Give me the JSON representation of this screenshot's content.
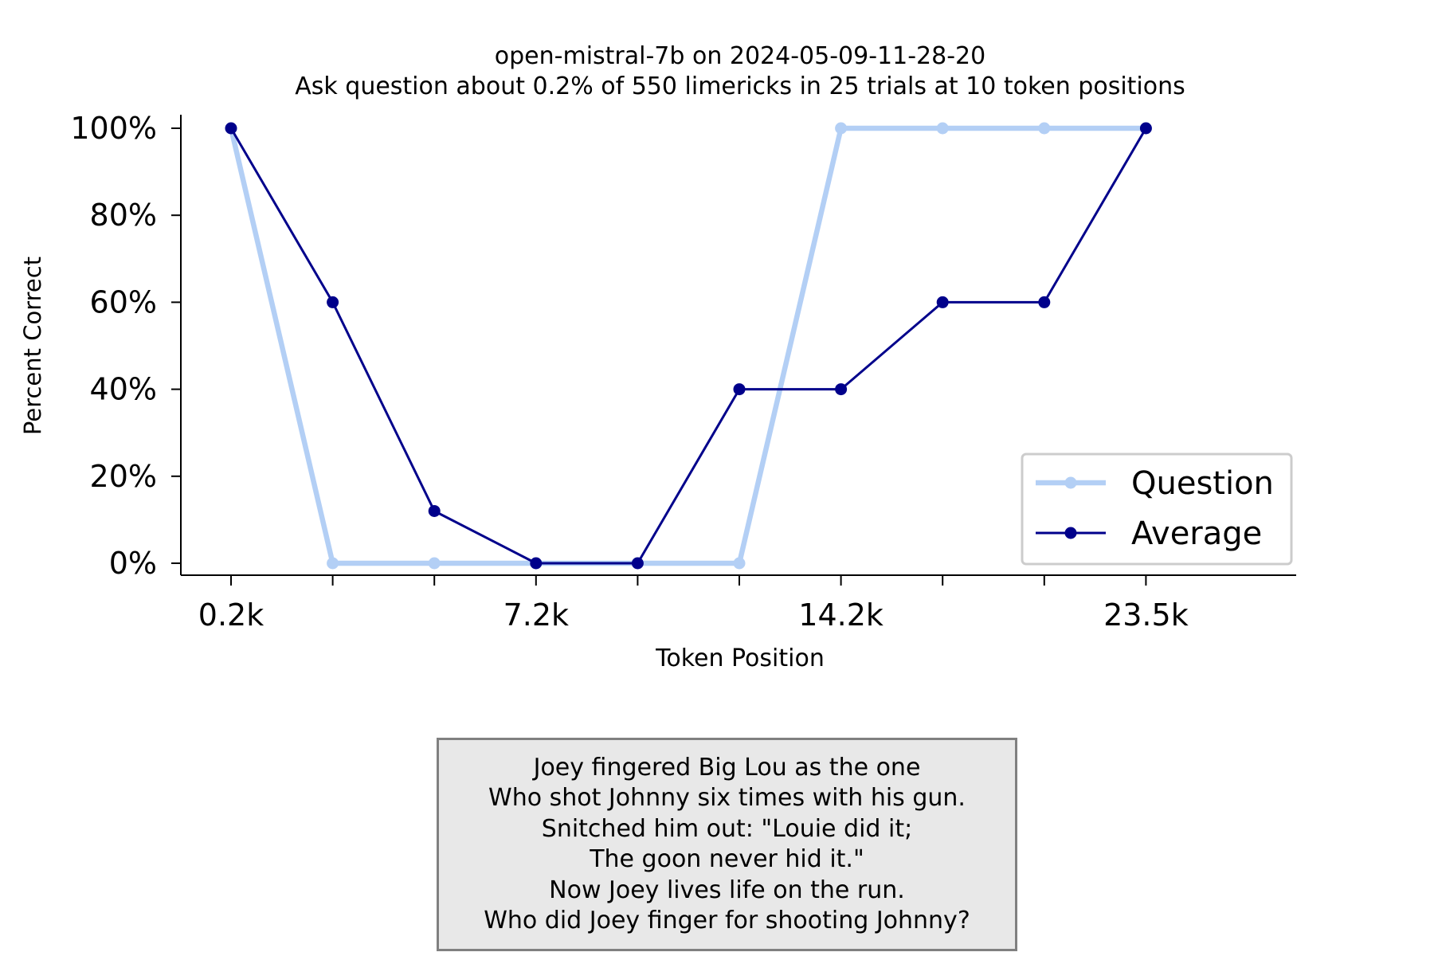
{
  "chart_data": {
    "type": "line",
    "title": "open-mistral-7b on 2024-05-09-11-28-20",
    "subtitle": "Ask question about 0.2% of 550 limericks in 25 trials at 10 token positions",
    "xlabel": "Token Position",
    "ylabel": "Percent Correct",
    "x": [
      0.2,
      2.6,
      4.9,
      7.2,
      9.6,
      11.9,
      14.2,
      16.6,
      18.9,
      23.5
    ],
    "x_ticks_labeled": [
      0,
      3,
      6,
      9
    ],
    "x_tick_labels": [
      "0.2k",
      "7.2k",
      "14.2k",
      "23.5k"
    ],
    "y_ticks": [
      0,
      20,
      40,
      60,
      80,
      100
    ],
    "y_tick_labels": [
      "0%",
      "20%",
      "40%",
      "60%",
      "80%",
      "100%"
    ],
    "ylim": [
      0,
      100
    ],
    "grid": false,
    "legend_position": "lower right",
    "series": [
      {
        "name": "Question",
        "color": "#b3cff5",
        "values": [
          100,
          0,
          0,
          0,
          0,
          0,
          100,
          100,
          100,
          100
        ]
      },
      {
        "name": "Average",
        "color": "#00008b",
        "values": [
          100,
          60,
          12,
          0,
          0,
          40,
          40,
          60,
          60,
          100
        ]
      }
    ]
  },
  "limerick": [
    "Joey fingered Big Lou as the one",
    "Who shot Johnny six times with his gun.",
    "Snitched him out: \"Louie did it;",
    "The goon never hid it.\"",
    "Now Joey lives life on the run.",
    "Who did Joey finger for shooting Johnny?"
  ]
}
